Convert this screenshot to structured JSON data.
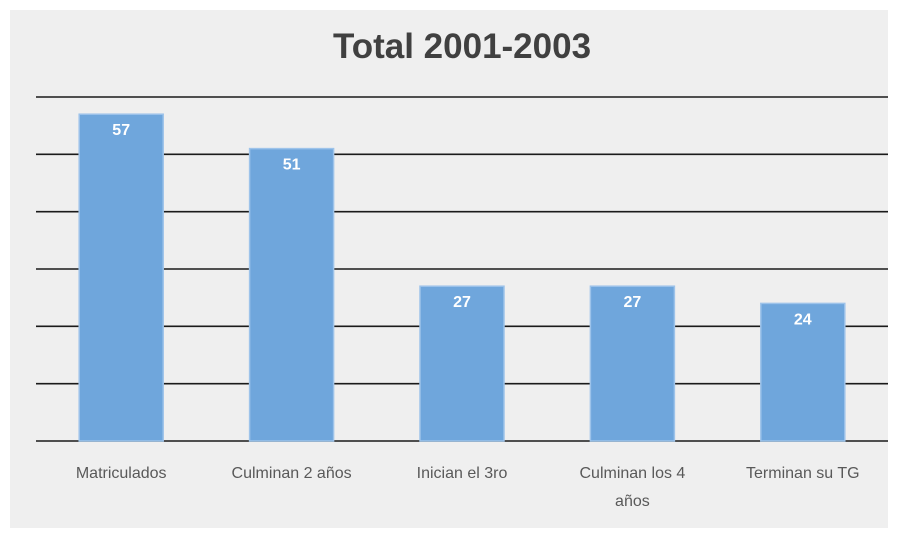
{
  "chart_data": {
    "type": "bar",
    "title": "Total 2001-2003",
    "categories": [
      "Matriculados",
      "Culminan 2 años",
      "Inician el 3ro",
      "Culminan los 4 años",
      "Terminan su TG"
    ],
    "category_label_lines": [
      [
        "Matriculados"
      ],
      [
        "Culminan 2 años"
      ],
      [
        "Inician el 3ro"
      ],
      [
        "Culminan los 4",
        "años"
      ],
      [
        "Terminan su TG"
      ]
    ],
    "values": [
      57,
      51,
      27,
      27,
      24
    ],
    "data_labels": [
      "57",
      "51",
      "27",
      "27",
      "24"
    ],
    "ylim": [
      0,
      60
    ],
    "y_gridline_step": 10,
    "grid": true,
    "y_tick_labels_visible": false,
    "legend": "none",
    "colors": {
      "bar": "#6fa6dc",
      "bar_border": "#9dc3ea",
      "background": "#efefef",
      "gridline": "#1a1a1a",
      "title": "#404040",
      "category_label": "#595959",
      "data_label": "#ffffff"
    }
  }
}
